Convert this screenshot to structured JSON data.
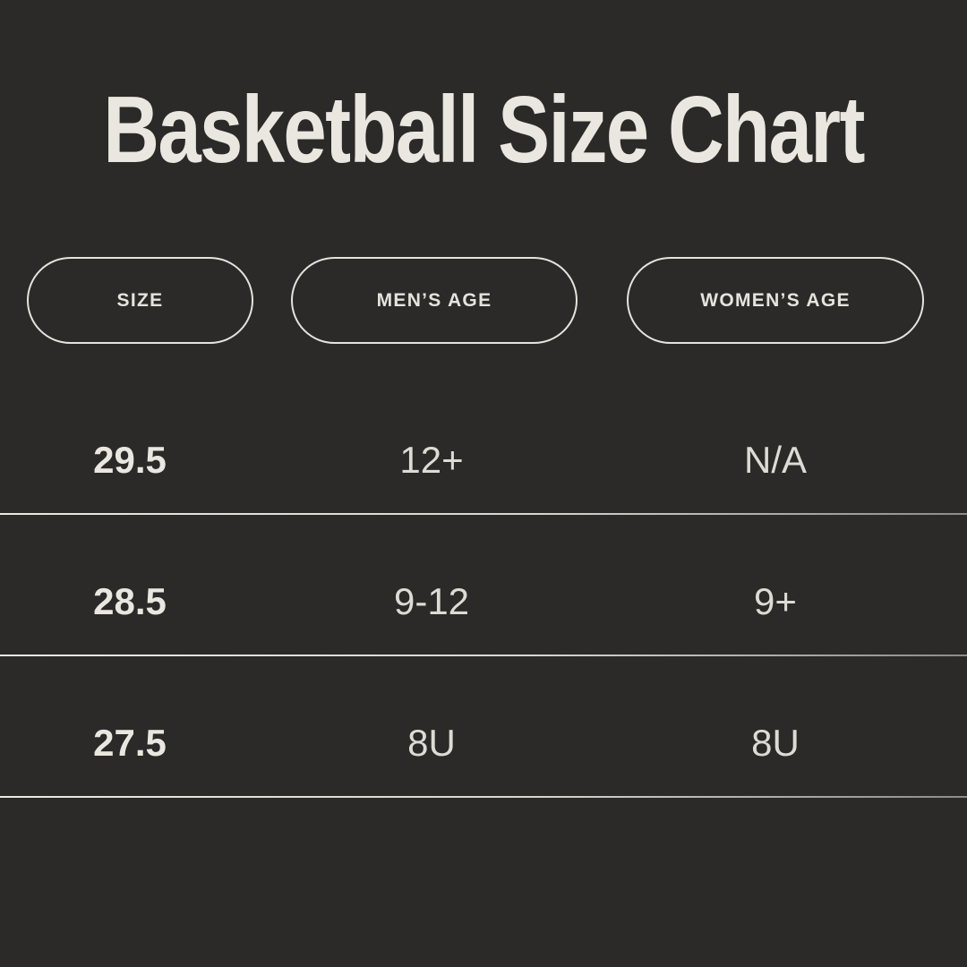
{
  "page": {
    "title": "Basketball Size Chart"
  },
  "colors": {
    "background": "#2b2a28",
    "title_text": "#eae7e1",
    "value_text": "#dedbd5",
    "pill_border": "#e6e3dd",
    "separator": "#d9d6d0"
  },
  "chart_data": {
    "type": "table",
    "title": "Basketball Size Chart",
    "columns": [
      "SIZE",
      "MEN’S AGE",
      "WOMEN’S AGE"
    ],
    "rows": [
      [
        "29.5",
        "12+",
        "N/A"
      ],
      [
        "28.5",
        "9-12",
        "9+"
      ],
      [
        "27.5",
        "8U",
        "8U"
      ]
    ]
  }
}
